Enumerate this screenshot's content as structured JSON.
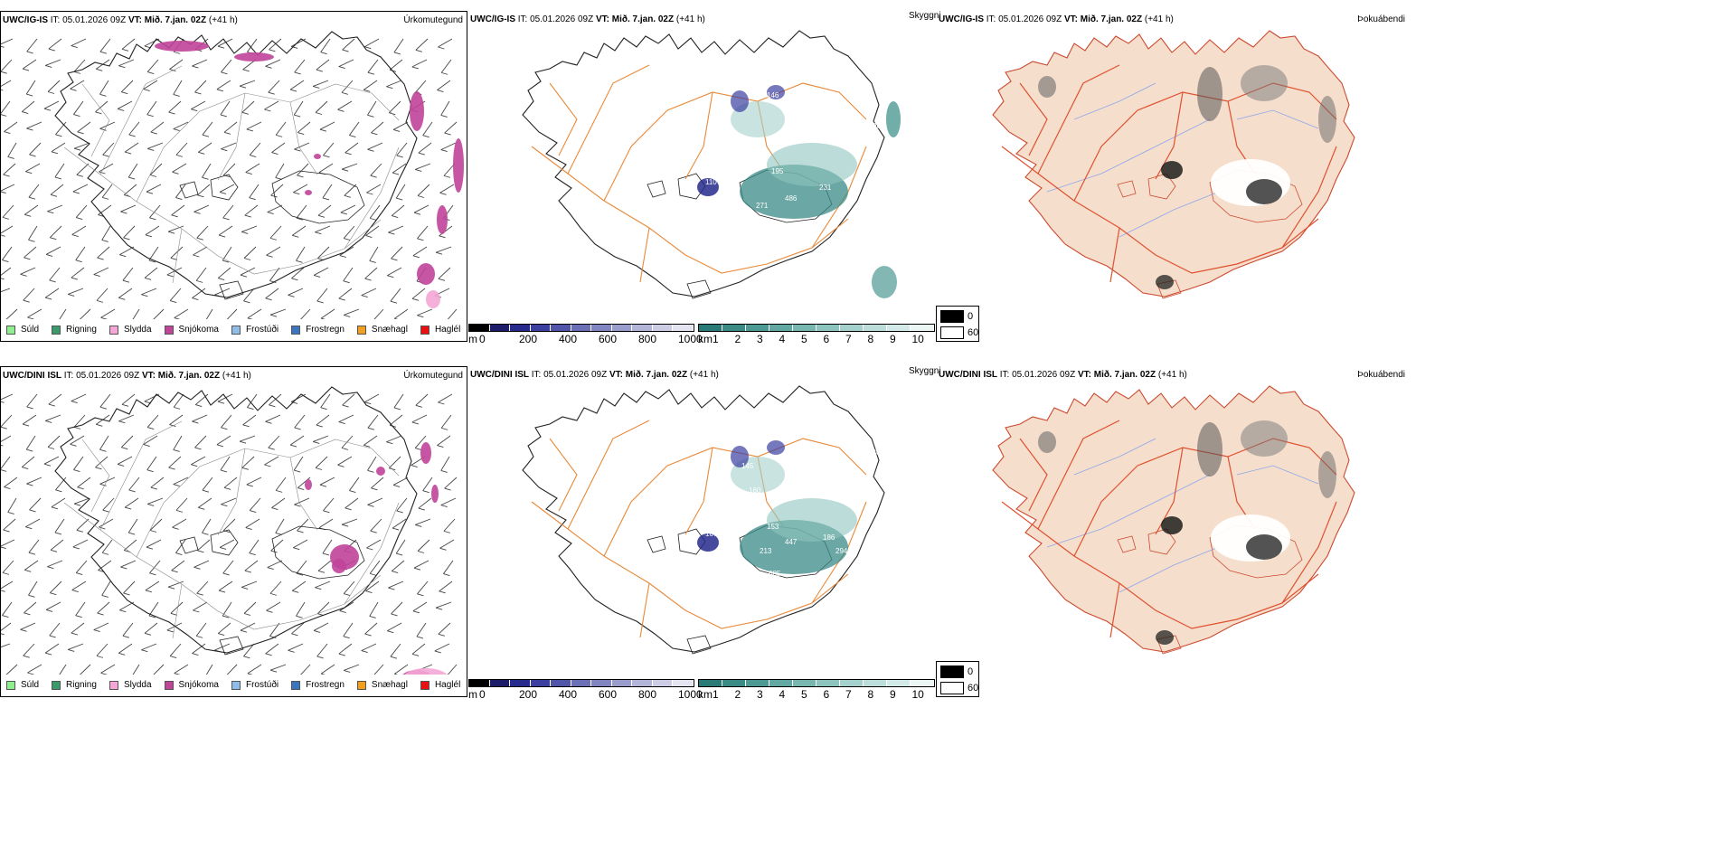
{
  "rows": [
    {
      "model": "UWC/IG-IS",
      "it_label": "IT:",
      "it_value": "05.01.2026 09Z",
      "vt_label": "VT:",
      "vt_value": "Mið. 7.jan. 02Z",
      "lead": "(+41 h)",
      "precip_title": "Úrkomutegund",
      "vis_title": "Skyggni",
      "dew_title": "Þokuábendi"
    },
    {
      "model": "UWC/DINI ISL",
      "it_label": "IT:",
      "it_value": "05.01.2026 09Z",
      "vt_label": "VT:",
      "vt_value": "Mið. 7.jan. 02Z",
      "lead": "(+41 h)",
      "precip_title": "Úrkomutegund",
      "vis_title": "Skyggni",
      "dew_title": "Þokuábendi"
    }
  ],
  "precip_legend": [
    {
      "label": "Súld",
      "color": "#90ee90"
    },
    {
      "label": "Rigning",
      "color": "#3a9a6a"
    },
    {
      "label": "Slydda",
      "color": "#f4a7d6"
    },
    {
      "label": "Snjókoma",
      "color": "#c0449a"
    },
    {
      "label": "Frostúði",
      "color": "#8fbce8"
    },
    {
      "label": "Frostregn",
      "color": "#3a76c0"
    },
    {
      "label": "Snæhagl",
      "color": "#f0a020"
    },
    {
      "label": "Haglél",
      "color": "#e81010"
    }
  ],
  "elev_bar": {
    "unit": "m",
    "ticks": [
      "0",
      "200",
      "400",
      "600",
      "800",
      "1000"
    ],
    "colors": [
      "#000000",
      "#1c1c6a",
      "#262a8c",
      "#3a3fa0",
      "#5055aa",
      "#6a6fb6",
      "#8185c0",
      "#9a9dcc",
      "#b3b5d8",
      "#cccde4",
      "#e4e4f0"
    ]
  },
  "vis_bar": {
    "unit": "km",
    "ticks": [
      "1",
      "2",
      "3",
      "4",
      "5",
      "6",
      "7",
      "8",
      "9",
      "10"
    ],
    "colors": [
      "#2a7a78",
      "#3a8a86",
      "#4d9994",
      "#62a8a2",
      "#78b6b0",
      "#8ec4be",
      "#a5d1cc",
      "#bcdeda",
      "#d3ebe8",
      "#eaf5f4"
    ]
  },
  "bw_legend": {
    "values": [
      "0",
      "60"
    ],
    "colors": [
      "#000000",
      "#ffffff"
    ]
  },
  "vis_labels": [
    [
      "364",
      "195",
      "271",
      "486",
      "963",
      "110",
      "943",
      "974",
      "231",
      "146"
    ],
    [
      "160",
      "153",
      "213",
      "447",
      "186",
      "294",
      "107",
      "685",
      "145",
      "186"
    ]
  ],
  "colors": {
    "coast": "#222222",
    "roads": "#e88a3a",
    "dew_fill": "#f5dfcc",
    "dew_roads": "#e05030",
    "rivers": "#8fa6e8",
    "barb": "#444444"
  }
}
